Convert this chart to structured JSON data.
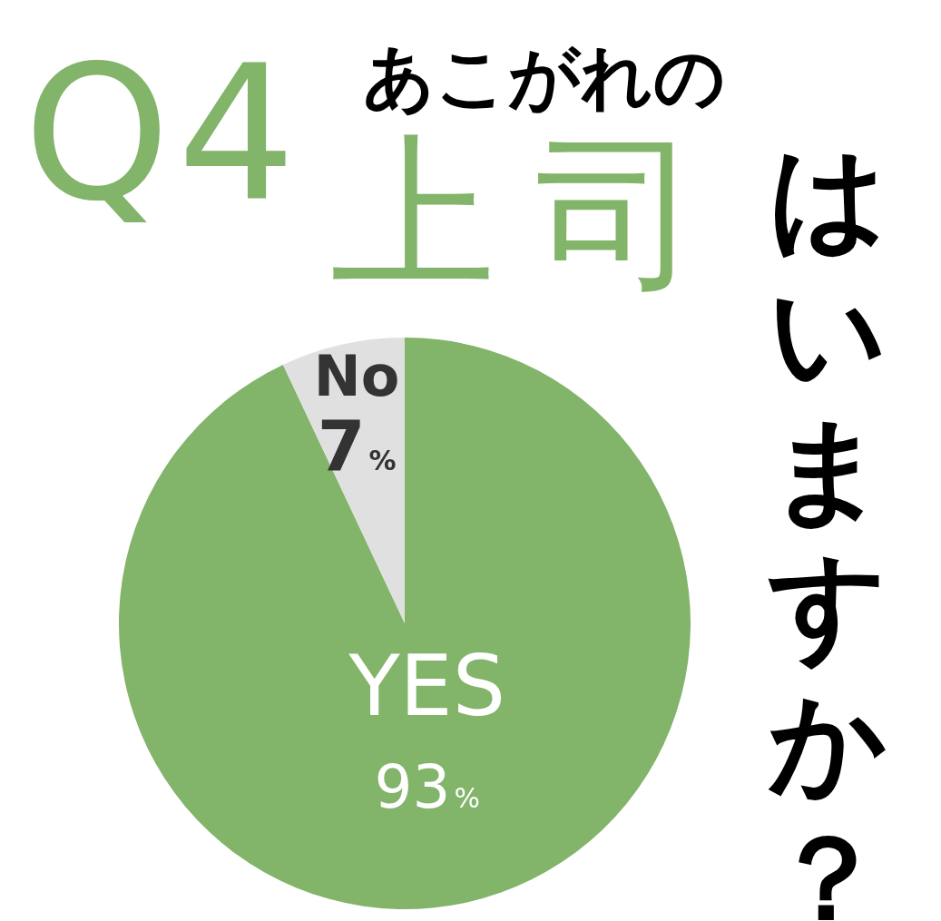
{
  "chart_data": {
    "type": "pie",
    "annotations": [
      "Q4",
      "あこがれの",
      "上司",
      "はいますか？"
    ],
    "categories": [
      "YES",
      "No"
    ],
    "values": [
      93,
      7
    ],
    "colors": [
      "#82b46a",
      "#e0e0e0"
    ],
    "value_labels": [
      "93%",
      "7%"
    ]
  }
}
